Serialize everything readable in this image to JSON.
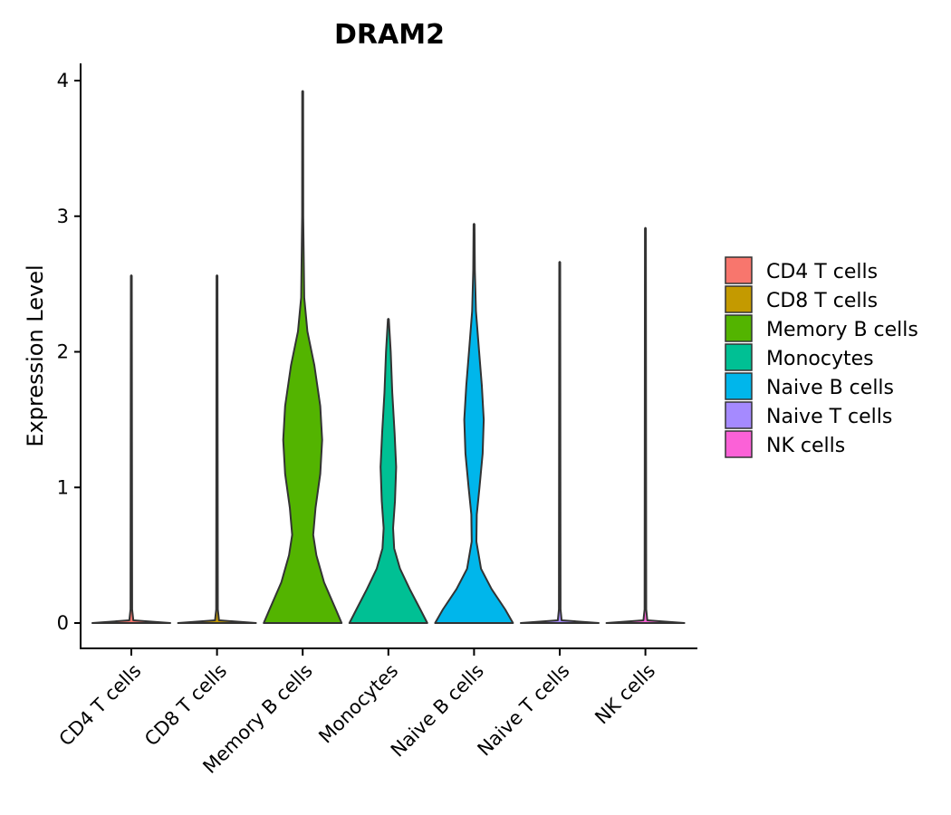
{
  "chart_data": {
    "type": "violin",
    "title": "DRAM2",
    "xlabel": "",
    "ylabel": "Expression Level",
    "ylim": [
      -0.2,
      4.12
    ],
    "yticks": [
      0,
      1,
      2,
      3,
      4
    ],
    "grid": false,
    "legend_position": "right",
    "categories": [
      "CD4 T cells",
      "CD8 T cells",
      "Memory B cells",
      "Monocytes",
      "Naive B cells",
      "Naive T cells",
      "NK cells"
    ],
    "colors": [
      "#F8766D",
      "#C49A00",
      "#53B400",
      "#00C094",
      "#00B6EB",
      "#A58AFF",
      "#FB61D7"
    ],
    "series": [
      {
        "name": "CD4 T cells",
        "max": 2.56,
        "profile": [
          [
            0,
            1
          ],
          [
            0.02,
            0.05
          ],
          [
            0.1,
            0.02
          ],
          [
            2.56,
            0.012
          ]
        ]
      },
      {
        "name": "CD8 T cells",
        "max": 2.56,
        "profile": [
          [
            0,
            1
          ],
          [
            0.02,
            0.05
          ],
          [
            0.1,
            0.02
          ],
          [
            2.56,
            0.012
          ]
        ]
      },
      {
        "name": "Memory B cells",
        "max": 3.92,
        "profile": [
          [
            0,
            1
          ],
          [
            0.1,
            0.85
          ],
          [
            0.3,
            0.55
          ],
          [
            0.5,
            0.35
          ],
          [
            0.65,
            0.27
          ],
          [
            0.85,
            0.33
          ],
          [
            1.1,
            0.45
          ],
          [
            1.35,
            0.5
          ],
          [
            1.6,
            0.45
          ],
          [
            1.9,
            0.3
          ],
          [
            2.15,
            0.12
          ],
          [
            2.4,
            0.04
          ],
          [
            3.0,
            0.015
          ],
          [
            3.92,
            0.012
          ]
        ]
      },
      {
        "name": "Monocytes",
        "max": 2.24,
        "profile": [
          [
            0,
            1
          ],
          [
            0.1,
            0.82
          ],
          [
            0.25,
            0.55
          ],
          [
            0.4,
            0.3
          ],
          [
            0.55,
            0.15
          ],
          [
            0.7,
            0.12
          ],
          [
            0.9,
            0.17
          ],
          [
            1.15,
            0.2
          ],
          [
            1.4,
            0.16
          ],
          [
            1.7,
            0.1
          ],
          [
            2.0,
            0.06
          ],
          [
            2.24,
            0.012
          ]
        ]
      },
      {
        "name": "Naive B cells",
        "max": 2.94,
        "profile": [
          [
            0,
            1
          ],
          [
            0.1,
            0.8
          ],
          [
            0.25,
            0.45
          ],
          [
            0.4,
            0.18
          ],
          [
            0.6,
            0.06
          ],
          [
            0.8,
            0.07
          ],
          [
            1.0,
            0.14
          ],
          [
            1.25,
            0.22
          ],
          [
            1.5,
            0.25
          ],
          [
            1.75,
            0.2
          ],
          [
            2.0,
            0.13
          ],
          [
            2.3,
            0.05
          ],
          [
            2.6,
            0.02
          ],
          [
            2.94,
            0.012
          ]
        ]
      },
      {
        "name": "Naive T cells",
        "max": 2.66,
        "profile": [
          [
            0,
            1
          ],
          [
            0.02,
            0.05
          ],
          [
            0.1,
            0.02
          ],
          [
            2.66,
            0.012
          ]
        ]
      },
      {
        "name": "NK cells",
        "max": 2.91,
        "profile": [
          [
            0,
            1
          ],
          [
            0.02,
            0.05
          ],
          [
            0.1,
            0.02
          ],
          [
            2.91,
            0.012
          ]
        ]
      }
    ]
  }
}
